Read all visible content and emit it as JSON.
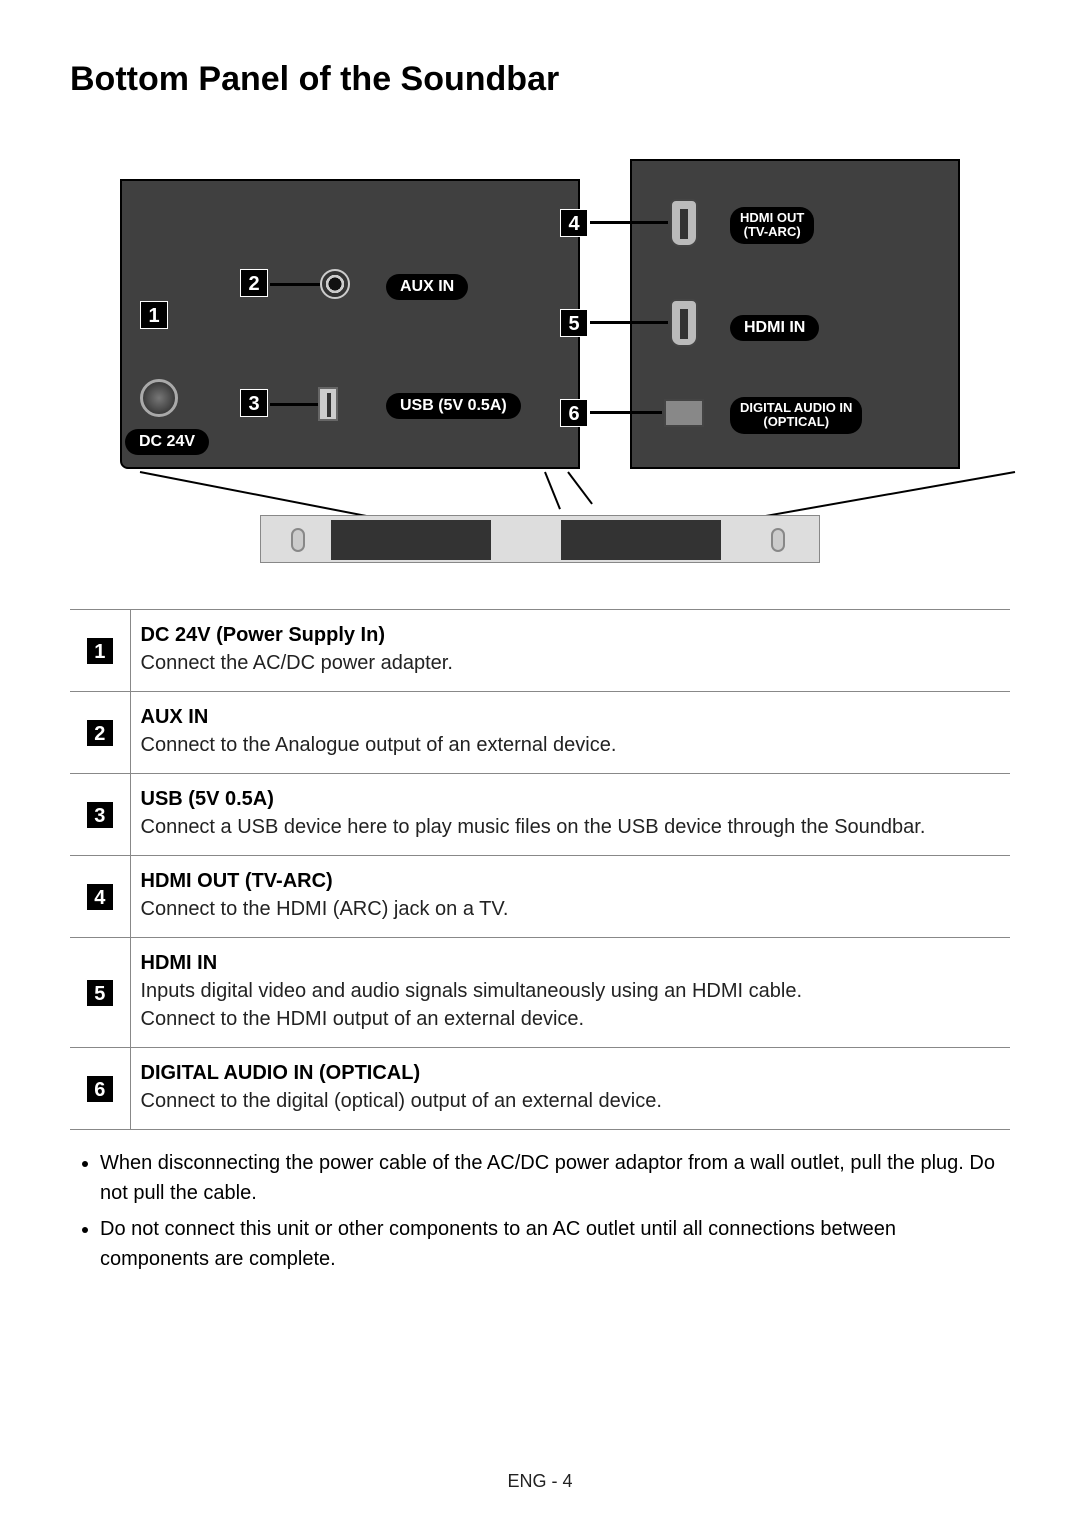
{
  "title": "Bottom Panel of the Soundbar",
  "diagram": {
    "labels": {
      "dc": "DC 24V",
      "aux": "AUX IN",
      "usb": "USB (5V 0.5A)",
      "hdmi_out_l1": "HDMI OUT",
      "hdmi_out_l2": "(TV-ARC)",
      "hdmi_in": "HDMI IN",
      "optical_l1": "DIGITAL AUDIO IN",
      "optical_l2": "(OPTICAL)"
    },
    "numbers": [
      "1",
      "2",
      "3",
      "4",
      "5",
      "6"
    ]
  },
  "ports": [
    {
      "num": "1",
      "title": "DC 24V (Power Supply In)",
      "desc": "Connect the AC/DC power adapter."
    },
    {
      "num": "2",
      "title": "AUX IN",
      "desc": "Connect to the Analogue output of an external device."
    },
    {
      "num": "3",
      "title": "USB (5V 0.5A)",
      "desc": "Connect a USB device here to play music files on the USB device through the Soundbar."
    },
    {
      "num": "4",
      "title": "HDMI OUT (TV-ARC)",
      "desc": "Connect to the HDMI (ARC) jack on a TV."
    },
    {
      "num": "5",
      "title": "HDMI IN",
      "desc": "Inputs digital video and audio signals simultaneously using an HDMI cable.\nConnect to the HDMI output of an external device."
    },
    {
      "num": "6",
      "title": "DIGITAL AUDIO IN (OPTICAL)",
      "desc": "Connect to the digital (optical) output of an external device."
    }
  ],
  "notes": [
    "When disconnecting the power cable of the AC/DC power adaptor from a wall outlet, pull the plug. Do not pull the cable.",
    "Do not connect this unit or other components to an AC outlet until all connections between components are complete."
  ],
  "footer": "ENG - 4"
}
